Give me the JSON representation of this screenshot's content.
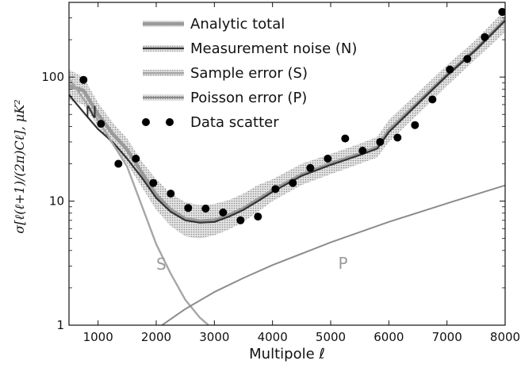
{
  "chart_data": {
    "type": "line",
    "title": "",
    "xlabel": "Multipole ℓ",
    "ylabel": "σ[ℓ(ℓ+1)/(2π)Cℓ], μK²",
    "xlim": [
      500,
      8000
    ],
    "ylim": [
      1,
      400
    ],
    "yscale": "log",
    "grid": false,
    "legend_position": "top-center",
    "x_ticks": [
      1000,
      2000,
      3000,
      4000,
      5000,
      6000,
      7000,
      8000
    ],
    "x_tick_labels": [
      "1000",
      "2000",
      "3000",
      "4000",
      "5000",
      "6000",
      "7000",
      "8000"
    ],
    "y_ticks": [
      1,
      10,
      100
    ],
    "y_tick_labels": [
      "1",
      "10",
      "100"
    ],
    "legend": [
      {
        "label": "Analytic total",
        "style": "line",
        "color": "#9a9a9a"
      },
      {
        "label": "Measurement noise (N)",
        "style": "line",
        "color": "#3a3a3a"
      },
      {
        "label": "Sample error (S)",
        "style": "line",
        "color": "#a8a8a8"
      },
      {
        "label": "Poisson error (P)",
        "style": "line",
        "color": "#8c8c8c"
      },
      {
        "label": "Data scatter",
        "style": "points",
        "color": "#000000"
      }
    ],
    "band": {
      "x": [
        500,
        750,
        1000,
        1250,
        1500,
        1750,
        2000,
        2250,
        2500,
        2750,
        3000,
        3250,
        3500,
        3750,
        4000,
        4500,
        5000,
        5500,
        5800,
        6000,
        6500,
        7000,
        7500,
        8000
      ],
      "lower": [
        65,
        60,
        40,
        28,
        20,
        13,
        8.5,
        6.3,
        5.2,
        5.0,
        5.3,
        5.9,
        6.8,
        8.2,
        10,
        13.5,
        16.5,
        20,
        22.5,
        30,
        50,
        85,
        140,
        230
      ],
      "upper": [
        115,
        100,
        62,
        43,
        32,
        21,
        15,
        11.5,
        9.8,
        9.3,
        9.5,
        10.2,
        11.5,
        13.5,
        15,
        20,
        24,
        29,
        33,
        45,
        75,
        125,
        200,
        350
      ]
    },
    "series": [
      {
        "name": "Analytic total",
        "x": [
          500,
          750,
          1000,
          1250,
          1500,
          1750,
          2000,
          2250,
          2500,
          2750,
          3000,
          3250,
          3500,
          3750,
          4000,
          4500,
          5000,
          5500,
          5800,
          6000,
          6500,
          7000,
          7500,
          8000
        ],
        "values": [
          85,
          78,
          50,
          35,
          26,
          17,
          11.2,
          8.5,
          7.2,
          6.9,
          7.0,
          7.7,
          8.7,
          10.3,
          12.2,
          16.3,
          20,
          24,
          27,
          37,
          62,
          104,
          168,
          290
        ]
      },
      {
        "name": "Measurement noise (N)",
        "x": [
          500,
          750,
          1000,
          1250,
          1500,
          1750,
          2000,
          2250,
          2500,
          2750,
          3000,
          3250,
          3500,
          3750,
          4000,
          4500,
          5000,
          5500,
          5800,
          6000,
          6500,
          7000,
          7500,
          8000
        ],
        "values": [
          72,
          52,
          38,
          30,
          22,
          15.5,
          10.6,
          8.2,
          7.0,
          6.7,
          6.8,
          7.5,
          8.5,
          10,
          11.9,
          16,
          19.6,
          23.5,
          26.5,
          36,
          61,
          103,
          166,
          285
        ]
      },
      {
        "name": "Sample error (S)",
        "x": [
          500,
          1000,
          1500,
          2000,
          2250,
          2500,
          2750,
          2900
        ],
        "values": [
          98,
          45,
          19,
          4.5,
          2.6,
          1.6,
          1.15,
          1.0
        ]
      },
      {
        "name": "Poisson error (P)",
        "x": [
          2100,
          2500,
          3000,
          3500,
          4000,
          5000,
          6000,
          7000,
          8000
        ],
        "values": [
          1.0,
          1.35,
          1.85,
          2.4,
          3.05,
          4.65,
          6.8,
          9.6,
          13.4
        ]
      }
    ],
    "scatter": {
      "name": "Data scatter",
      "x": [
        750,
        1050,
        1350,
        1650,
        1950,
        2250,
        2550,
        2850,
        3150,
        3450,
        3750,
        4050,
        4350,
        4650,
        4950,
        5250,
        5550,
        5850,
        6150,
        6450,
        6750,
        7050,
        7350,
        7650,
        7950
      ],
      "values": [
        95,
        42,
        20,
        22,
        14,
        11.5,
        8.8,
        8.7,
        8.1,
        7.0,
        7.5,
        12.5,
        14,
        18.5,
        22,
        32,
        25.5,
        30,
        32.5,
        41,
        66,
        115,
        140,
        210,
        335
      ]
    },
    "annotations": [
      {
        "text": "N",
        "x": 780,
        "y": 47,
        "color": "#2a2a2a"
      },
      {
        "text": "S",
        "x": 2000,
        "y": 2.8,
        "color": "#9a9a9a"
      },
      {
        "text": "P",
        "x": 5130,
        "y": 2.85,
        "color": "#9a9a9a"
      }
    ]
  }
}
